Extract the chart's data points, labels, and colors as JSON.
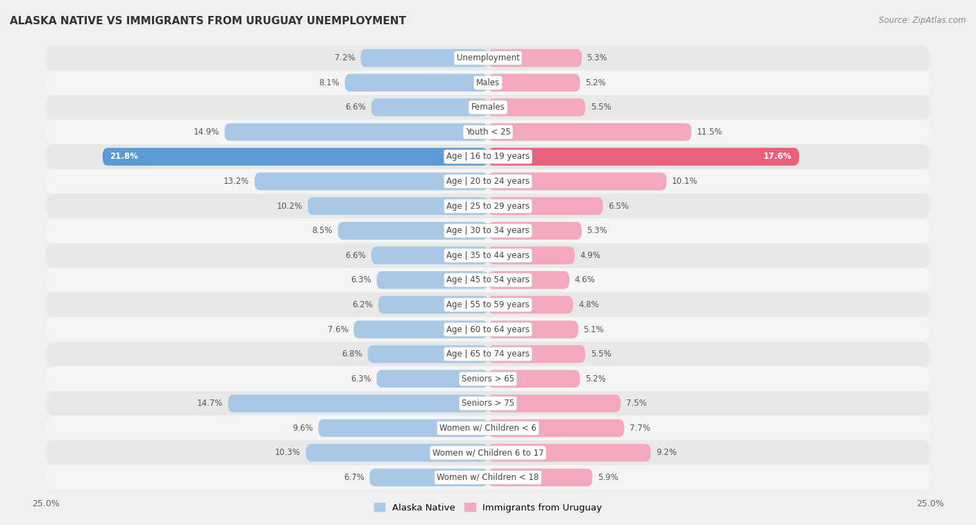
{
  "title": "ALASKA NATIVE VS IMMIGRANTS FROM URUGUAY UNEMPLOYMENT",
  "source": "Source: ZipAtlas.com",
  "categories": [
    "Unemployment",
    "Males",
    "Females",
    "Youth < 25",
    "Age | 16 to 19 years",
    "Age | 20 to 24 years",
    "Age | 25 to 29 years",
    "Age | 30 to 34 years",
    "Age | 35 to 44 years",
    "Age | 45 to 54 years",
    "Age | 55 to 59 years",
    "Age | 60 to 64 years",
    "Age | 65 to 74 years",
    "Seniors > 65",
    "Seniors > 75",
    "Women w/ Children < 6",
    "Women w/ Children 6 to 17",
    "Women w/ Children < 18"
  ],
  "alaska_native": [
    7.2,
    8.1,
    6.6,
    14.9,
    21.8,
    13.2,
    10.2,
    8.5,
    6.6,
    6.3,
    6.2,
    7.6,
    6.8,
    6.3,
    14.7,
    9.6,
    10.3,
    6.7
  ],
  "immigrants_uruguay": [
    5.3,
    5.2,
    5.5,
    11.5,
    17.6,
    10.1,
    6.5,
    5.3,
    4.9,
    4.6,
    4.8,
    5.1,
    5.5,
    5.2,
    7.5,
    7.7,
    9.2,
    5.9
  ],
  "alaska_color": "#a8c8e8",
  "alaska_color_highlight": "#5b9bd5",
  "uruguay_color": "#f4a8be",
  "uruguay_color_highlight": "#e8607a",
  "highlight_row": 4,
  "axis_limit": 25.0,
  "background_color": "#f0f0f0",
  "row_color_even": "#e8e8e8",
  "row_color_odd": "#f5f5f5",
  "legend_alaska": "Alaska Native",
  "legend_uruguay": "Immigrants from Uruguay"
}
